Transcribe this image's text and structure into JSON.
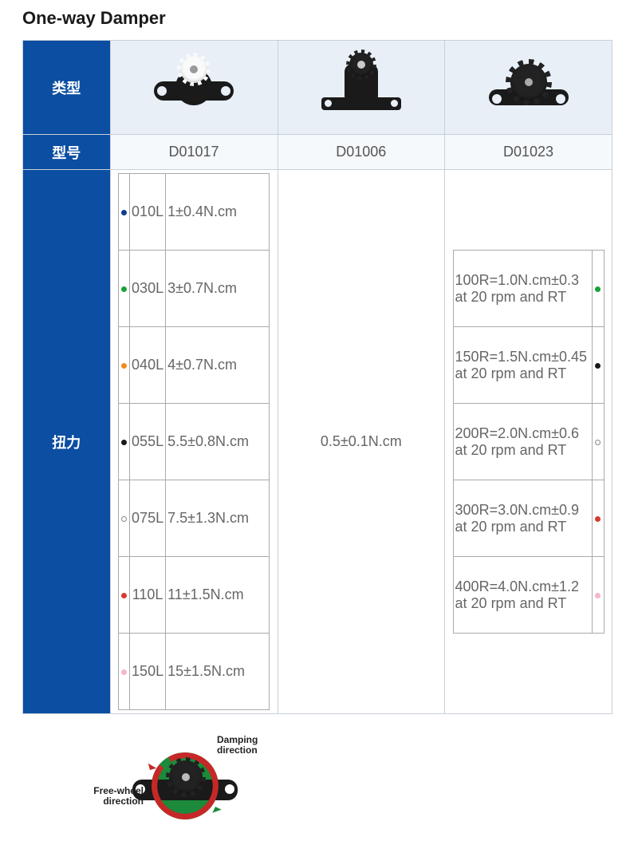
{
  "title": "One-way Damper",
  "rows": {
    "type_label": "类型",
    "model_label": "型号",
    "torque_label": "扭力"
  },
  "models": [
    "D01017",
    "D01006",
    "D01023"
  ],
  "torque_center": "0.5±0.1N.cm",
  "torque_left": [
    {
      "color": "#0b3d91",
      "code": "010L",
      "spec": "1±0.4N.cm"
    },
    {
      "color": "#1aa238",
      "code": "030L",
      "spec": "3±0.7N.cm"
    },
    {
      "color": "#f08a1d",
      "code": "040L",
      "spec": "4±0.7N.cm"
    },
    {
      "color": "#1a1a1a",
      "code": "055L",
      "spec": "5.5±0.8N.cm"
    },
    {
      "color": "#ffffff",
      "code": "075L",
      "spec": "7.5±1.3N.cm"
    },
    {
      "color": "#d63b2f",
      "code": "110L",
      "spec": "11±1.5N.cm"
    },
    {
      "color": "#f4b6c8",
      "code": "150L",
      "spec": "15±1.5N.cm"
    }
  ],
  "torque_right": [
    {
      "text": "100R=1.0N.cm±0.3 at 20 rpm and RT",
      "color": "#1aa238"
    },
    {
      "text": "150R=1.5N.cm±0.45 at 20 rpm and RT",
      "color": "#1a1a1a"
    },
    {
      "text": "200R=2.0N.cm±0.6 at 20 rpm and RT",
      "color": "#ffffff"
    },
    {
      "text": "300R=3.0N.cm±0.9 at 20 rpm and RT",
      "color": "#d63b2f"
    },
    {
      "text": "400R=4.0N.cm±1.2 at 20 rpm and RT",
      "color": "#f4b6c8"
    }
  ],
  "direction": {
    "free_label": "Free-wheel direction",
    "damp_label": "Damping direction"
  },
  "style": {
    "header_bg": "#0b4ea2",
    "alt_row_bg": "#e8eff7",
    "model_row_bg": "#f5f9fc",
    "border_color": "#c8d0d8",
    "title_color": "#1a1a1a",
    "text_color": "#555555"
  }
}
